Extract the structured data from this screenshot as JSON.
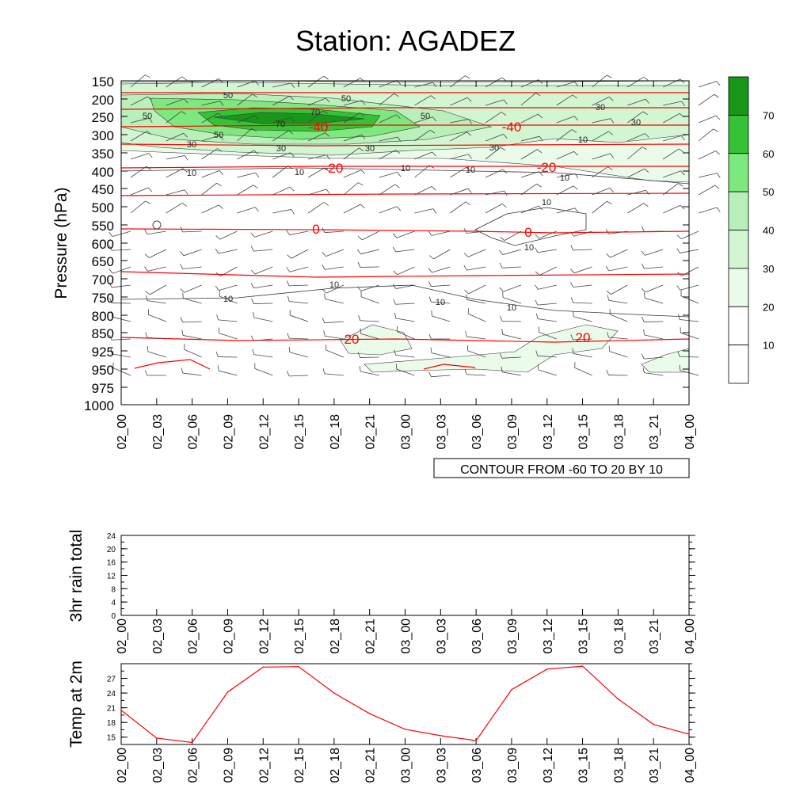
{
  "title": "Station: AGADEZ",
  "chart_data": [
    {
      "type": "contour",
      "name": "upper-air time-height section",
      "ylabel": "Pressure (hPa)",
      "y_ticks": [
        "150",
        "200",
        "250",
        "300",
        "350",
        "400",
        "450",
        "500",
        "550",
        "600",
        "650",
        "700",
        "750",
        "800",
        "850",
        "925",
        "950",
        "975",
        "1000"
      ],
      "x_ticks": [
        "02_00",
        "02_03",
        "02_06",
        "02_09",
        "02_12",
        "02_15",
        "02_18",
        "02_21",
        "03_00",
        "03_03",
        "03_06",
        "03_09",
        "03_12",
        "03_15",
        "03_18",
        "03_21",
        "04_00"
      ],
      "contour_info": "CONTOUR FROM -60 TO 20 BY 10",
      "temperature_labels": [
        "-40",
        "-40",
        "-20",
        "-20",
        "0",
        "0",
        "20",
        "20"
      ],
      "wind_labels": [
        "50",
        "50",
        "50",
        "50",
        "50",
        "70",
        "70",
        "30",
        "30",
        "30",
        "30",
        "30",
        "30",
        "10",
        "10",
        "10",
        "10",
        "10",
        "10",
        "10",
        "10",
        "10",
        "10",
        "10",
        "10"
      ],
      "colorbar": {
        "levels": [
          "10",
          "20",
          "30",
          "40",
          "50",
          "60",
          "70"
        ],
        "colors": [
          "#ffffff",
          "#ffffff",
          "#eafbea",
          "#d2f5d2",
          "#b9efb9",
          "#7de87d",
          "#36c236",
          "#1a961a"
        ]
      }
    },
    {
      "type": "line",
      "name": "3hr rain total",
      "ylabel": "3hr rain total",
      "ylim": [
        0,
        24
      ],
      "y_ticks": [
        "0",
        "4",
        "8",
        "12",
        "16",
        "20",
        "24"
      ],
      "x_ticks": [
        "02_00",
        "02_03",
        "02_06",
        "02_09",
        "02_12",
        "02_15",
        "02_18",
        "02_21",
        "03_00",
        "03_03",
        "03_06",
        "03_09",
        "03_12",
        "03_15",
        "03_18",
        "03_21",
        "04_00"
      ],
      "values": []
    },
    {
      "type": "line",
      "name": "Temp at 2m",
      "ylabel": "Temp at 2m",
      "ylim": [
        13.5,
        30
      ],
      "y_ticks": [
        "15",
        "18",
        "21",
        "24",
        "27"
      ],
      "x_ticks": [
        "02_00",
        "02_03",
        "02_06",
        "02_09",
        "02_12",
        "02_15",
        "02_18",
        "02_21",
        "03_00",
        "03_03",
        "03_06",
        "03_09",
        "03_12",
        "03_15",
        "03_18",
        "03_21",
        "04_00"
      ],
      "values": [
        20.5,
        14.8,
        13.9,
        24.2,
        29.3,
        29.4,
        24.0,
        19.8,
        16.6,
        15.3,
        14.3,
        24.7,
        28.9,
        29.5,
        22.8,
        17.6,
        15.6
      ],
      "color": "#ff0000"
    }
  ]
}
